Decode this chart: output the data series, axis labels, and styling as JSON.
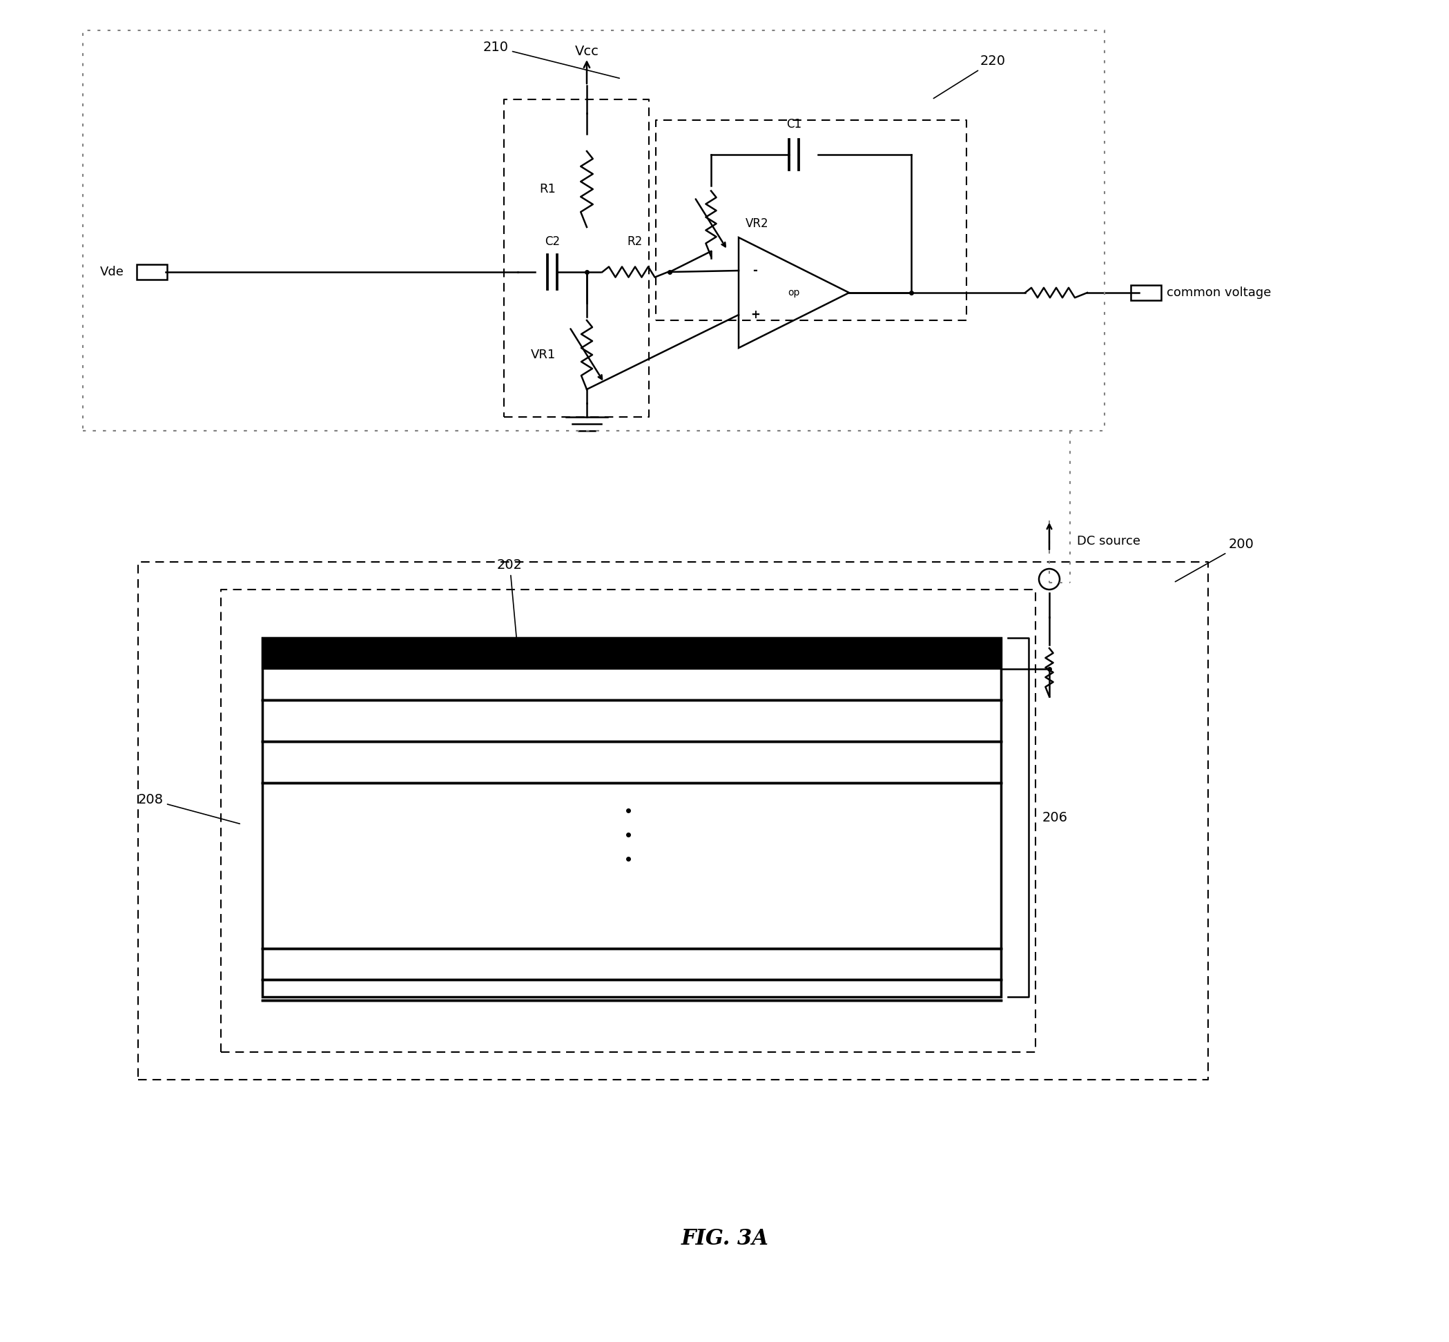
{
  "bg_color": "#ffffff",
  "line_color": "#000000",
  "dashed_color": "#000000",
  "dotted_color": "#888888",
  "fig_title": "FIG. 3A",
  "labels": {
    "vcc": "Vcc",
    "vde": "Vde",
    "r1": "R1",
    "r2": "R2",
    "vr1": "VR1",
    "vr2": "VR2",
    "c1": "C1",
    "c2": "C2",
    "op": "op",
    "common_voltage": "common voltage",
    "dc_source": "DC source",
    "num_210": "210",
    "num_220": "220",
    "num_200": "200",
    "num_202": "202",
    "num_206": "206",
    "num_208": "208"
  }
}
